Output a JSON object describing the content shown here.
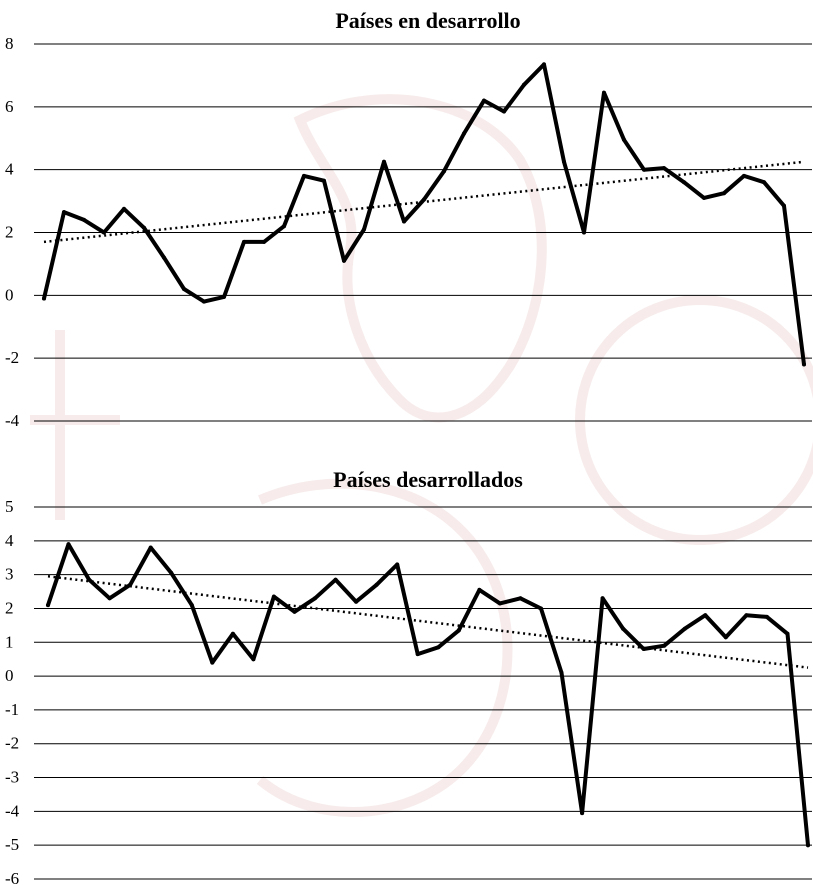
{
  "chart_data": [
    {
      "type": "line",
      "title": "Países en desarrollo",
      "ylim": [
        -4,
        8
      ],
      "y_ticks": [
        8,
        6,
        4,
        2,
        0,
        -2,
        -4
      ],
      "grid": true,
      "series": [
        {
          "values": [
            -0.1,
            2.65,
            2.4,
            2.0,
            2.75,
            2.15,
            1.2,
            0.2,
            -0.2,
            -0.05,
            1.7,
            1.7,
            2.2,
            3.8,
            3.65,
            1.1,
            2.1,
            4.25,
            2.35,
            3.05,
            3.95,
            5.15,
            6.2,
            5.85,
            6.7,
            7.35,
            4.25,
            2.0,
            6.45,
            4.95,
            4.0,
            4.05,
            3.6,
            3.1,
            3.25,
            3.8,
            3.6,
            2.85,
            -2.2
          ],
          "trend": [
            1.7,
            4.25
          ]
        }
      ]
    },
    {
      "type": "line",
      "title": "Países desarrollados",
      "ylim": [
        -6,
        5
      ],
      "y_ticks": [
        5,
        4,
        3,
        2,
        1,
        0,
        -1,
        -2,
        -3,
        -4,
        -5,
        -6
      ],
      "grid": true,
      "series": [
        {
          "values": [
            2.1,
            3.9,
            2.85,
            2.3,
            2.7,
            3.8,
            3.05,
            2.1,
            0.4,
            1.25,
            0.5,
            2.35,
            1.9,
            2.3,
            2.85,
            2.2,
            2.7,
            3.3,
            0.65,
            0.85,
            1.35,
            2.55,
            2.15,
            2.3,
            2.0,
            0.1,
            -4.05,
            2.3,
            1.4,
            0.8,
            0.9,
            1.4,
            1.8,
            1.15,
            1.8,
            1.75,
            1.25,
            -5.0
          ],
          "trend": [
            2.95,
            0.25
          ]
        }
      ]
    }
  ]
}
